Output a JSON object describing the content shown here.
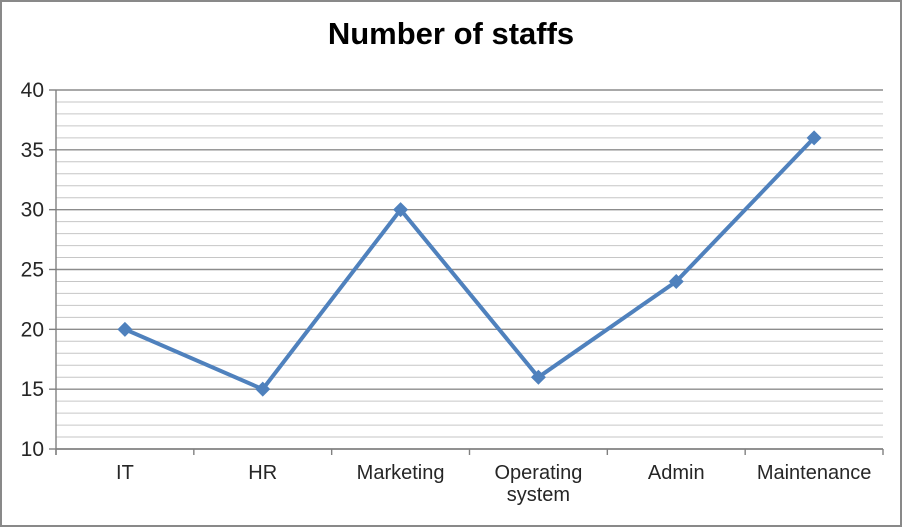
{
  "chart_data": {
    "type": "line",
    "title": "Number of staffs",
    "categories": [
      "IT",
      "HR",
      "Marketing",
      "Operating system",
      "Admin",
      "Maintenance"
    ],
    "values": [
      20,
      15,
      30,
      16,
      24,
      36
    ],
    "xlabel": "",
    "ylabel": "",
    "ylim": [
      10,
      40
    ],
    "y_major_unit": 5,
    "y_minor_unit": 1,
    "y_tick_labels": [
      "40",
      "35",
      "30",
      "25",
      "20",
      "15",
      "10"
    ],
    "grid": "horizontal major and minor gridlines on",
    "legend": "none",
    "marker": "diamond",
    "colors": {
      "series": "#4F81BD",
      "major_gridline": "#8C8C8C",
      "minor_gridline": "#C6C6C6",
      "axis": "#808080",
      "tick_text": "#262626",
      "title_text": "#000000",
      "frame_border": "#898989",
      "background": "#FFFFFF"
    }
  }
}
